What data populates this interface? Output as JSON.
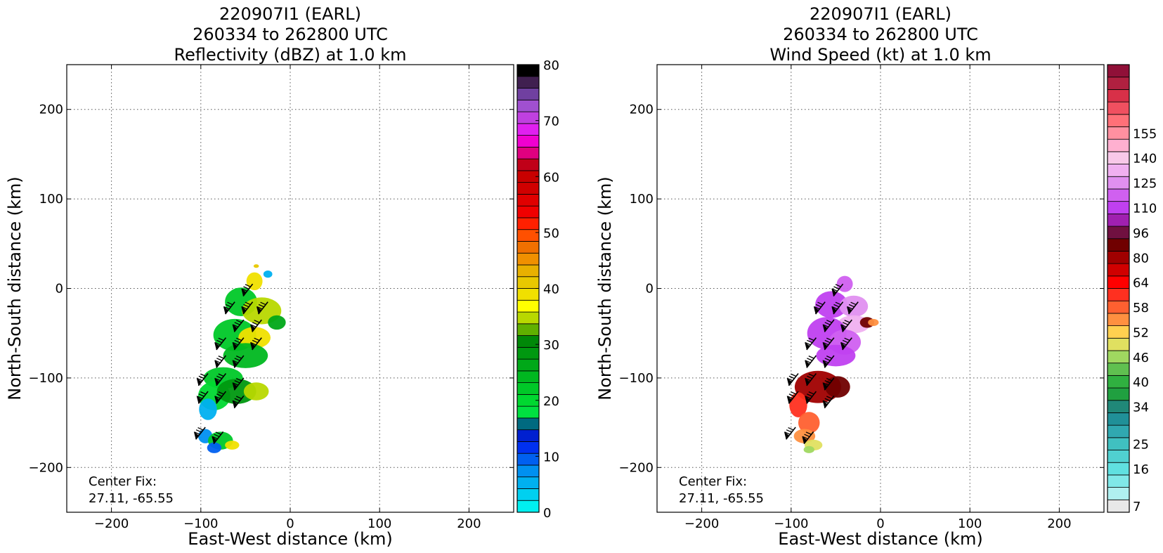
{
  "chart_data": [
    {
      "type": "heatmap",
      "title_lines": [
        "220907I1 (EARL)",
        "260334 to 262800 UTC",
        "Reflectivity (dBZ) at 1.0 km"
      ],
      "xlabel": "East-West distance (km)",
      "ylabel": "North-South distance (km)",
      "xlim": [
        -250,
        250
      ],
      "ylim": [
        -250,
        250
      ],
      "xticks": [
        -200,
        -100,
        0,
        100,
        200
      ],
      "yticks": [
        -200,
        -100,
        0,
        100,
        200
      ],
      "xtick_labels": [
        "−200",
        "−100",
        "0",
        "100",
        "200"
      ],
      "ytick_labels": [
        "−200",
        "−100",
        "0",
        "100",
        "200"
      ],
      "grid": true,
      "annotation_lines": [
        "Center Fix:",
        "27.11, -65.55"
      ],
      "colorbar": {
        "min": 0,
        "max": 80,
        "tick_values": [
          0,
          10,
          20,
          30,
          40,
          50,
          60,
          70,
          80
        ],
        "tick_labels": [
          "0",
          "10",
          "20",
          "30",
          "40",
          "50",
          "60",
          "70",
          "80"
        ],
        "colors": [
          "#00f0f0",
          "#00d0f0",
          "#00b0f0",
          "#0090f0",
          "#0060f0",
          "#0030f0",
          "#0020d0",
          "#006a80",
          "#00e040",
          "#00d830",
          "#00c828",
          "#00b820",
          "#00a818",
          "#009810",
          "#008808",
          "#60b000",
          "#b8d800",
          "#ffff00",
          "#f0e000",
          "#e8c800",
          "#e8b000",
          "#f09000",
          "#f07000",
          "#ff5000",
          "#ff2000",
          "#f00000",
          "#e00000",
          "#d00000",
          "#c80000",
          "#c00018",
          "#e00080",
          "#f000d0",
          "#e020f0",
          "#c040e0",
          "#a050d0",
          "#7040a0",
          "#402050",
          "#000000"
        ]
      },
      "echo_blobs": [
        {
          "x": -40,
          "y": 8,
          "rx": 9,
          "ry": 10,
          "color": "#f0e000"
        },
        {
          "x": -25,
          "y": 16,
          "rx": 5,
          "ry": 4,
          "color": "#00b0f0"
        },
        {
          "x": -38,
          "y": 25,
          "rx": 3,
          "ry": 2,
          "color": "#e8c800"
        },
        {
          "x": -55,
          "y": -15,
          "rx": 18,
          "ry": 16,
          "color": "#00c828"
        },
        {
          "x": -32,
          "y": -25,
          "rx": 22,
          "ry": 15,
          "color": "#b8d800"
        },
        {
          "x": -15,
          "y": -38,
          "rx": 10,
          "ry": 8,
          "color": "#00a818"
        },
        {
          "x": -62,
          "y": -52,
          "rx": 24,
          "ry": 18,
          "color": "#00c828"
        },
        {
          "x": -40,
          "y": -55,
          "rx": 18,
          "ry": 12,
          "color": "#f0e000"
        },
        {
          "x": -50,
          "y": -75,
          "rx": 25,
          "ry": 14,
          "color": "#00b820"
        },
        {
          "x": -75,
          "y": -100,
          "rx": 22,
          "ry": 12,
          "color": "#00c828"
        },
        {
          "x": -85,
          "y": -120,
          "rx": 18,
          "ry": 16,
          "color": "#00d830"
        },
        {
          "x": -60,
          "y": -115,
          "rx": 22,
          "ry": 14,
          "color": "#009810"
        },
        {
          "x": -38,
          "y": -115,
          "rx": 14,
          "ry": 10,
          "color": "#b8d800"
        },
        {
          "x": -92,
          "y": -135,
          "rx": 10,
          "ry": 12,
          "color": "#00b0f0"
        },
        {
          "x": -95,
          "y": -165,
          "rx": 8,
          "ry": 8,
          "color": "#0090f0"
        },
        {
          "x": -78,
          "y": -170,
          "rx": 14,
          "ry": 10,
          "color": "#00c828"
        },
        {
          "x": -65,
          "y": -175,
          "rx": 8,
          "ry": 5,
          "color": "#f0e000"
        },
        {
          "x": -85,
          "y": -178,
          "rx": 8,
          "ry": 6,
          "color": "#0060f0"
        }
      ],
      "wind_barbs": [
        {
          "x": -42,
          "y": 5
        },
        {
          "x": -62,
          "y": -15
        },
        {
          "x": -42,
          "y": -15
        },
        {
          "x": -25,
          "y": -15
        },
        {
          "x": -52,
          "y": -35
        },
        {
          "x": -32,
          "y": -35
        },
        {
          "x": -72,
          "y": -55
        },
        {
          "x": -52,
          "y": -55
        },
        {
          "x": -32,
          "y": -55
        },
        {
          "x": -72,
          "y": -75
        },
        {
          "x": -52,
          "y": -75
        },
        {
          "x": -92,
          "y": -95
        },
        {
          "x": -72,
          "y": -95
        },
        {
          "x": -52,
          "y": -100
        },
        {
          "x": -92,
          "y": -115
        },
        {
          "x": -72,
          "y": -115
        },
        {
          "x": -52,
          "y": -120
        },
        {
          "x": -95,
          "y": -155
        },
        {
          "x": -75,
          "y": -160
        }
      ]
    },
    {
      "type": "heatmap",
      "title_lines": [
        "220907I1 (EARL)",
        "260334 to 262800 UTC",
        "Wind Speed (kt) at 1.0 km"
      ],
      "xlabel": "East-West distance (km)",
      "ylabel": "North-South distance (km)",
      "xlim": [
        -250,
        250
      ],
      "ylim": [
        -250,
        250
      ],
      "xticks": [
        -200,
        -100,
        0,
        100,
        200
      ],
      "yticks": [
        -200,
        -100,
        0,
        100,
        200
      ],
      "xtick_labels": [
        "−200",
        "−100",
        "0",
        "100",
        "200"
      ],
      "ytick_labels": [
        "−200",
        "−100",
        "0",
        "100",
        "200"
      ],
      "grid": true,
      "annotation_lines": [
        "Center Fix:",
        "27.11, -65.55"
      ],
      "colorbar": {
        "tick_labels": [
          "7",
          "16",
          "25",
          "34",
          "40",
          "46",
          "52",
          "58",
          "64",
          "80",
          "96",
          "110",
          "125",
          "140",
          "155"
        ],
        "tick_bins": [
          0,
          3,
          5,
          8,
          10,
          12,
          14,
          16,
          18,
          20,
          22,
          24,
          26,
          28,
          30
        ],
        "colors": [
          "#e8e8e8",
          "#b0f0f0",
          "#80e8e8",
          "#60e0e0",
          "#50d0d0",
          "#40c0c0",
          "#30a8b0",
          "#209098",
          "#208878",
          "#20a040",
          "#30b040",
          "#60c050",
          "#a0d860",
          "#e0e060",
          "#ffd050",
          "#ff9040",
          "#ff6030",
          "#ff3020",
          "#ff0000",
          "#d00000",
          "#a00000",
          "#700000",
          "#701040",
          "#a020b0",
          "#c040f0",
          "#d060f0",
          "#e090f0",
          "#f0b0f0",
          "#f8c8e8",
          "#ffb0d0",
          "#ff90a0",
          "#ff7078",
          "#f05060",
          "#d83048",
          "#b02040",
          "#901038"
        ]
      },
      "echo_blobs": [
        {
          "x": -40,
          "y": 5,
          "rx": 9,
          "ry": 9,
          "color": "#d060f0"
        },
        {
          "x": -55,
          "y": -18,
          "rx": 18,
          "ry": 15,
          "color": "#c040f0"
        },
        {
          "x": -30,
          "y": -20,
          "rx": 16,
          "ry": 12,
          "color": "#e090f0"
        },
        {
          "x": -30,
          "y": -40,
          "rx": 18,
          "ry": 10,
          "color": "#f0b0f0"
        },
        {
          "x": -15,
          "y": -38,
          "rx": 8,
          "ry": 6,
          "color": "#700000"
        },
        {
          "x": -8,
          "y": -38,
          "rx": 6,
          "ry": 4,
          "color": "#ff9040"
        },
        {
          "x": -60,
          "y": -50,
          "rx": 22,
          "ry": 18,
          "color": "#c040f0"
        },
        {
          "x": -40,
          "y": -60,
          "rx": 18,
          "ry": 14,
          "color": "#d060f0"
        },
        {
          "x": -50,
          "y": -75,
          "rx": 22,
          "ry": 12,
          "color": "#c040f0"
        },
        {
          "x": -70,
          "y": -110,
          "rx": 26,
          "ry": 18,
          "color": "#a00000"
        },
        {
          "x": -48,
          "y": -110,
          "rx": 14,
          "ry": 12,
          "color": "#700000"
        },
        {
          "x": -92,
          "y": -130,
          "rx": 10,
          "ry": 14,
          "color": "#ff3020"
        },
        {
          "x": -80,
          "y": -150,
          "rx": 12,
          "ry": 12,
          "color": "#ff6030"
        },
        {
          "x": -85,
          "y": -165,
          "rx": 12,
          "ry": 8,
          "color": "#ff9040"
        },
        {
          "x": -75,
          "y": -175,
          "rx": 10,
          "ry": 6,
          "color": "#e0e060"
        },
        {
          "x": -80,
          "y": -180,
          "rx": 6,
          "ry": 4,
          "color": "#a0d860"
        }
      ],
      "wind_barbs": [
        {
          "x": -42,
          "y": 5
        },
        {
          "x": -62,
          "y": -15
        },
        {
          "x": -42,
          "y": -15
        },
        {
          "x": -25,
          "y": -15
        },
        {
          "x": -52,
          "y": -35
        },
        {
          "x": -32,
          "y": -35
        },
        {
          "x": -72,
          "y": -55
        },
        {
          "x": -52,
          "y": -55
        },
        {
          "x": -32,
          "y": -55
        },
        {
          "x": -72,
          "y": -75
        },
        {
          "x": -52,
          "y": -75
        },
        {
          "x": -92,
          "y": -95
        },
        {
          "x": -72,
          "y": -95
        },
        {
          "x": -52,
          "y": -100
        },
        {
          "x": -92,
          "y": -115
        },
        {
          "x": -72,
          "y": -115
        },
        {
          "x": -52,
          "y": -120
        },
        {
          "x": -95,
          "y": -155
        },
        {
          "x": -75,
          "y": -160
        }
      ]
    }
  ]
}
